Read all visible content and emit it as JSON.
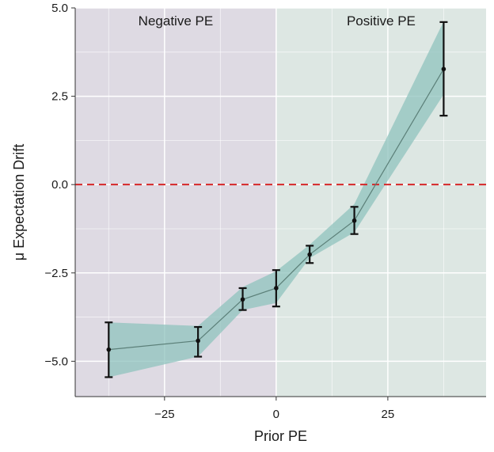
{
  "chart_data": {
    "type": "line",
    "xlabel": "Prior PE",
    "ylabel": "μ Expectation Drift",
    "xlim": [
      -45,
      47
    ],
    "ylim": [
      -6,
      5
    ],
    "x_ticks": [
      -25,
      0,
      25
    ],
    "x_tick_labels": [
      "−25",
      "0",
      "25"
    ],
    "y_ticks": [
      5,
      2.5,
      0,
      -2.5,
      -5
    ],
    "y_tick_labels": [
      "5.0",
      "2.5",
      "0.0",
      "−2.5",
      "−5.0"
    ],
    "grid": true,
    "regions": [
      {
        "name": "negative",
        "label": "Negative PE",
        "x_from": -45,
        "x_to": 0,
        "color": "#dedae3"
      },
      {
        "name": "positive",
        "label": "Positive PE",
        "x_from": 0,
        "x_to": 47,
        "color": "#dde7e3"
      }
    ],
    "reference_line": {
      "y": 0,
      "color": "#d62728",
      "style": "dashed"
    },
    "series": [
      {
        "name": "mean",
        "x": [
          -37.5,
          -17.5,
          -7.5,
          0,
          7.5,
          17.5,
          37.5
        ],
        "y": [
          -4.67,
          -4.42,
          -3.25,
          -2.93,
          -1.98,
          -1.02,
          3.27
        ],
        "err_low": [
          -5.45,
          -4.87,
          -3.55,
          -3.45,
          -2.22,
          -1.4,
          1.95
        ],
        "err_high": [
          -3.9,
          -4.03,
          -2.93,
          -2.42,
          -1.73,
          -0.63,
          4.6
        ],
        "band_low": [
          -5.45,
          -4.87,
          -3.55,
          -3.35,
          -2.08,
          -1.35,
          2.55
        ],
        "band_high": [
          -3.9,
          -4.0,
          -2.9,
          -2.45,
          -1.7,
          -0.55,
          4.62
        ],
        "line_color": "#5b7f78",
        "band_color": "#8fc3be"
      }
    ]
  }
}
